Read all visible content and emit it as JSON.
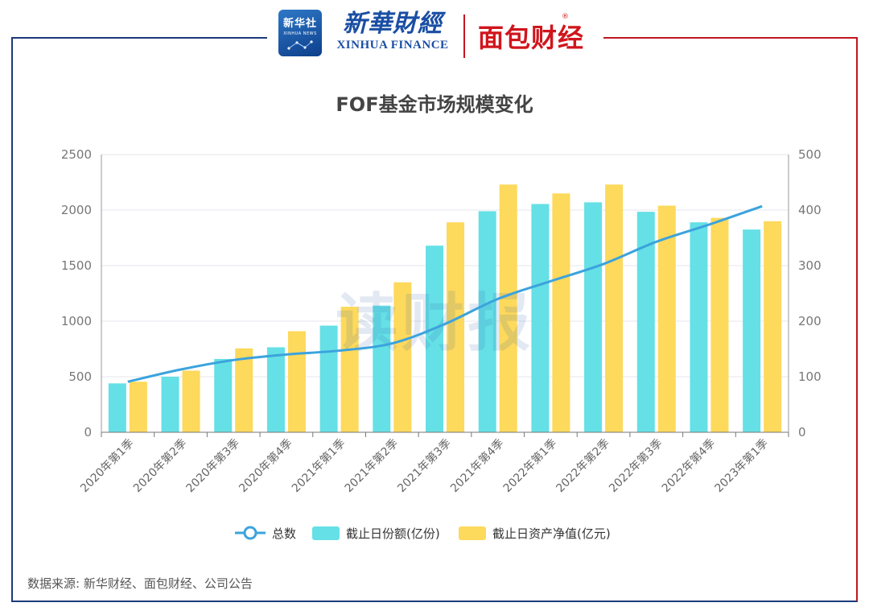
{
  "header": {
    "xinhua_badge_cn": "新华社",
    "xinhua_badge_en": "XINHUA NEWS",
    "xinhua_finance_cn": "新華財經",
    "xinhua_finance_en": "XINHUA FINANCE",
    "mianbao_logo": "面包财经",
    "registered_mark": "®"
  },
  "watermark": "读财报",
  "source": "数据来源: 新华财经、面包财经、公司公告",
  "colors": {
    "bar_shares": "#65e0e6",
    "bar_assets": "#fdd95c",
    "line_total": "#3ba3dd",
    "frame_blue": "#1b3a7a",
    "frame_red": "#c0171f"
  },
  "chart_data": {
    "type": "bar",
    "title": "FOF基金市场规模变化",
    "categories": [
      "2020年第1季",
      "2020年第2季",
      "2020年第3季",
      "2020年第4季",
      "2021年第1季",
      "2021年第2季",
      "2021年第3季",
      "2021年第4季",
      "2022年第1季",
      "2022年第2季",
      "2022年第3季",
      "2022年第4季",
      "2023年第1季"
    ],
    "series": [
      {
        "name": "总数",
        "type": "line",
        "axis": "right",
        "values": [
          91,
          113,
          130,
          140,
          147,
          160,
          195,
          240,
          272,
          303,
          343,
          374,
          407
        ]
      },
      {
        "name": "截止日份额(亿份)",
        "type": "bar",
        "axis": "left",
        "values": [
          440,
          500,
          660,
          765,
          960,
          1140,
          1680,
          1990,
          2055,
          2070,
          1985,
          1890,
          1825
        ]
      },
      {
        "name": "截止日资产净值(亿元)",
        "type": "bar",
        "axis": "left",
        "values": [
          455,
          555,
          755,
          910,
          1130,
          1350,
          1890,
          2230,
          2150,
          2230,
          2040,
          1930,
          1900
        ]
      }
    ],
    "left_axis": {
      "ylim": [
        0,
        2500
      ],
      "ticks": [
        "0",
        "500",
        "1000",
        "1500",
        "2000",
        "2500"
      ]
    },
    "right_axis": {
      "ylim": [
        0,
        500
      ],
      "ticks": [
        "0",
        "100",
        "200",
        "300",
        "400",
        "500"
      ]
    },
    "grid": true,
    "legend_position": "bottom-center"
  }
}
